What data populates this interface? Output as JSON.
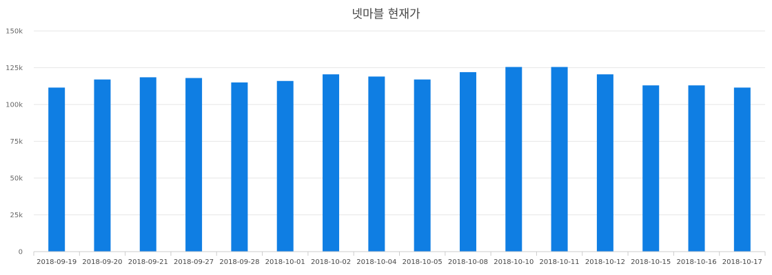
{
  "chart_data": {
    "type": "bar",
    "title": "넷마블 현재가",
    "xlabel": "",
    "ylabel": "",
    "categories": [
      "2018-09-19",
      "2018-09-20",
      "2018-09-21",
      "2018-09-27",
      "2018-09-28",
      "2018-10-01",
      "2018-10-02",
      "2018-10-04",
      "2018-10-05",
      "2018-10-08",
      "2018-10-10",
      "2018-10-11",
      "2018-10-12",
      "2018-10-15",
      "2018-10-16",
      "2018-10-17"
    ],
    "series": [
      {
        "values": [
          111500,
          117000,
          118500,
          118000,
          115000,
          116000,
          120500,
          119000,
          117000,
          122000,
          125500,
          125500,
          120500,
          113000,
          113000,
          111500
        ]
      }
    ],
    "ylim": [
      0,
      150000
    ],
    "yticks": [
      0,
      25000,
      50000,
      75000,
      100000,
      125000,
      150000
    ],
    "ytick_labels": [
      "0",
      "25k",
      "50k",
      "75k",
      "100k",
      "125k",
      "150k"
    ],
    "grid": true,
    "legend": "none",
    "colors": {
      "bar": "#0f7ee3",
      "grid": "#e6e6e6",
      "axis": "#cccccc"
    }
  }
}
